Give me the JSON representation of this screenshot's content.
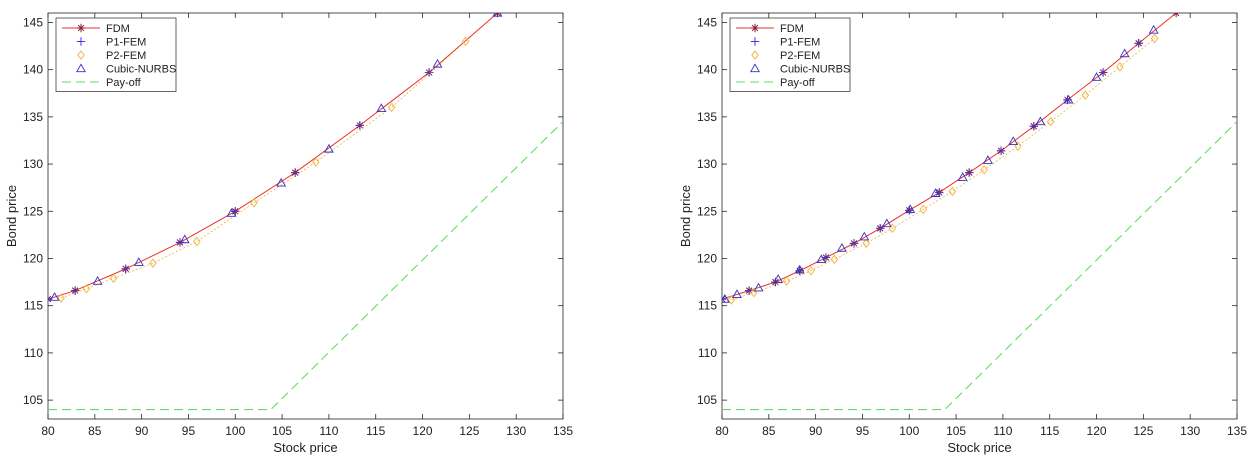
{
  "colors": {
    "fdm": "#e8332a",
    "fdm_marker": "#8b1a2e",
    "p1fem": "#3a3ae0",
    "p2fem": "#f2b033",
    "nurbs": "#3030c8",
    "payoff": "#5ee05e"
  },
  "chart_data": [
    {
      "type": "line",
      "title": "",
      "xlabel": "Stock price",
      "ylabel": "Bond price",
      "xlim": [
        80,
        135
      ],
      "ylim": [
        103,
        146
      ],
      "x_ticks": [
        "80",
        "85",
        "90",
        "95",
        "100",
        "105",
        "110",
        "115",
        "120",
        "125",
        "130",
        "135"
      ],
      "y_ticks": [
        "105",
        "110",
        "115",
        "120",
        "125",
        "130",
        "135",
        "140",
        "145"
      ],
      "legend_position": "top-left",
      "legend": [
        "FDM",
        "P1-FEM",
        "P2-FEM",
        "Cubic-NURBS",
        "Pay-off"
      ],
      "series": [
        {
          "name": "FDM",
          "marker": "asterisk",
          "x": [
            80.0,
            82.9,
            88.3,
            94.1,
            100.0,
            106.4,
            113.3,
            120.7,
            128.0
          ],
          "y": [
            115.7,
            116.6,
            118.9,
            121.7,
            125.0,
            129.1,
            134.1,
            139.7,
            146.0
          ]
        },
        {
          "name": "P1-FEM",
          "marker": "plus",
          "x": [
            80.0,
            82.9,
            88.3,
            94.1,
            100.0,
            106.4,
            113.3,
            120.7
          ],
          "y": [
            115.7,
            116.6,
            118.9,
            121.7,
            125.0,
            129.1,
            134.1,
            139.7
          ]
        },
        {
          "name": "P2-FEM",
          "marker": "diamond",
          "x": [
            81.4,
            84.1,
            87.0,
            91.2,
            95.9,
            102.0,
            108.6,
            116.7,
            124.6
          ],
          "y": [
            115.8,
            116.8,
            117.9,
            119.5,
            121.8,
            125.9,
            130.2,
            136.0,
            143.0
          ]
        },
        {
          "name": "Cubic-NURBS",
          "marker": "triangle",
          "x": [
            80.7,
            85.3,
            89.7,
            94.6,
            99.6,
            104.9,
            110.0,
            115.6,
            121.6,
            128.0
          ],
          "y": [
            115.9,
            117.6,
            119.6,
            122.0,
            124.8,
            128.0,
            131.6,
            135.9,
            140.6,
            146.0
          ]
        },
        {
          "name": "Pay-off",
          "marker": "none",
          "style": "dashed",
          "x": [
            80,
            103.8,
            135
          ],
          "y": [
            104.0,
            104.0,
            134.5
          ]
        }
      ]
    },
    {
      "type": "line",
      "title": "",
      "xlabel": "Stock price",
      "ylabel": "Bond price",
      "xlim": [
        80,
        135
      ],
      "ylim": [
        103,
        146
      ],
      "x_ticks": [
        "80",
        "85",
        "90",
        "95",
        "100",
        "105",
        "110",
        "115",
        "120",
        "125",
        "130",
        "135"
      ],
      "y_ticks": [
        "105",
        "110",
        "115",
        "120",
        "125",
        "130",
        "135",
        "140",
        "145"
      ],
      "legend_position": "top-left",
      "legend": [
        "FDM",
        "P1-FEM",
        "P2-FEM",
        "Cubic-NURBS",
        "Pay-off"
      ],
      "series": [
        {
          "name": "FDM",
          "marker": "asterisk",
          "x": [
            80.0,
            82.9,
            85.7,
            88.3,
            91.1,
            94.1,
            96.9,
            100.0,
            103.2,
            106.4,
            109.8,
            113.3,
            116.9,
            120.7,
            124.5,
            128.5
          ],
          "y": [
            115.7,
            116.6,
            117.5,
            118.7,
            120.1,
            121.6,
            123.2,
            125.1,
            127.0,
            129.1,
            131.4,
            134.0,
            136.8,
            139.7,
            142.8,
            146.0
          ]
        },
        {
          "name": "P1-FEM",
          "marker": "plus",
          "x": [
            80.0,
            82.9,
            85.7,
            88.3,
            91.1,
            94.1,
            96.9,
            100.0,
            103.2,
            106.4,
            109.8,
            113.3,
            116.9,
            120.7,
            124.5
          ],
          "y": [
            115.7,
            116.6,
            117.5,
            118.7,
            120.1,
            121.6,
            123.2,
            125.1,
            127.0,
            129.1,
            131.4,
            134.0,
            136.8,
            139.7,
            142.8
          ]
        },
        {
          "name": "P2-FEM",
          "marker": "diamond",
          "x": [
            81.0,
            83.4,
            86.9,
            89.5,
            92.0,
            95.4,
            98.2,
            101.5,
            104.6,
            108.0,
            111.6,
            115.1,
            118.8,
            122.5,
            126.2
          ],
          "y": [
            115.6,
            116.4,
            117.6,
            118.7,
            119.9,
            121.6,
            123.2,
            125.2,
            127.1,
            129.4,
            131.9,
            134.5,
            137.3,
            140.3,
            143.3
          ]
        },
        {
          "name": "Cubic-NURBS",
          "marker": "triangle",
          "x": [
            80.3,
            81.6,
            83.9,
            86.0,
            88.3,
            90.6,
            92.8,
            95.2,
            97.6,
            100.1,
            102.8,
            105.7,
            108.4,
            111.1,
            114.0,
            117.0,
            120.0,
            123.0,
            126.1
          ],
          "y": [
            115.7,
            116.2,
            116.9,
            117.8,
            118.8,
            119.9,
            121.1,
            122.3,
            123.7,
            125.2,
            126.9,
            128.6,
            130.4,
            132.4,
            134.5,
            136.8,
            139.2,
            141.7,
            144.2
          ]
        },
        {
          "name": "Pay-off",
          "marker": "none",
          "style": "dashed",
          "x": [
            80,
            103.8,
            135
          ],
          "y": [
            104.0,
            104.0,
            134.5
          ]
        }
      ]
    }
  ]
}
